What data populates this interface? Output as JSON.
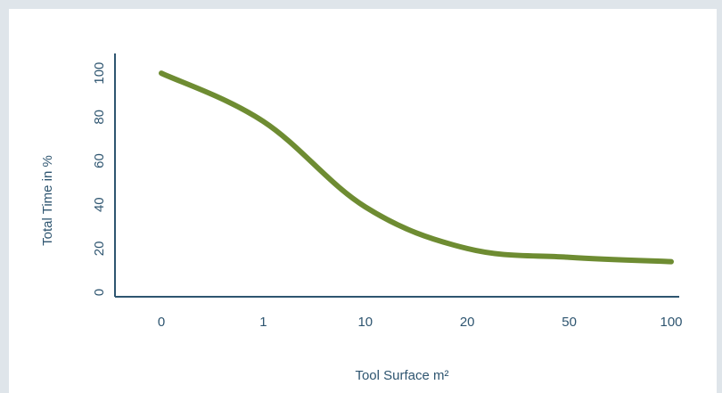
{
  "chart_data": {
    "type": "line",
    "categories": [
      "0",
      "1",
      "10",
      "20",
      "50",
      "100"
    ],
    "series": [
      {
        "values": [
          100,
          78,
          39,
          20,
          16,
          14
        ]
      }
    ],
    "xlabel": "Tool Surface m²",
    "ylabel": "Total Time in %",
    "yticks": [
      "0",
      "20",
      "40",
      "60",
      "80",
      "100"
    ],
    "ylim": [
      -2,
      109
    ],
    "grid": false,
    "colors": {
      "line": "#6e8c32",
      "axis": "#2e5570",
      "frame": "#dfe5ea"
    }
  }
}
